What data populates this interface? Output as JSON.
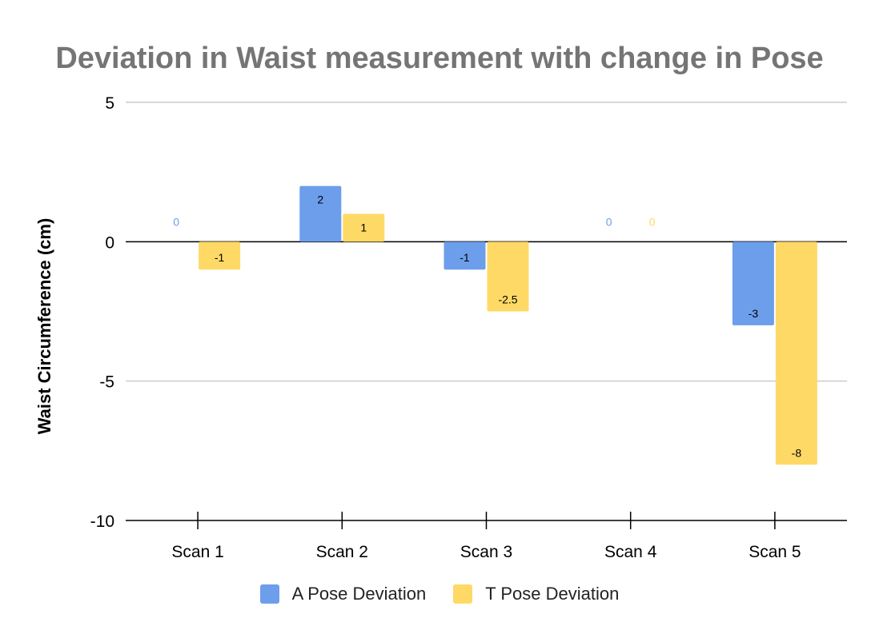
{
  "chart_data": {
    "type": "bar",
    "title": "Deviation in Waist measurement with change in Pose",
    "xlabel": "",
    "ylabel": "Waist Circumference (cm)",
    "categories": [
      "Scan 1",
      "Scan 2",
      "Scan 3",
      "Scan 4",
      "Scan 5"
    ],
    "series": [
      {
        "name": "A Pose Deviation",
        "values": [
          0,
          2,
          -1,
          0,
          -3
        ],
        "color": "#6d9eeb"
      },
      {
        "name": "T Pose Deviation",
        "values": [
          -1,
          1,
          -2.5,
          0,
          -8
        ],
        "color": "#ffd966"
      }
    ],
    "ylim": [
      -10,
      5
    ],
    "yticks": [
      5,
      0,
      -5,
      -10
    ],
    "grid": true,
    "legend_position": "bottom"
  }
}
